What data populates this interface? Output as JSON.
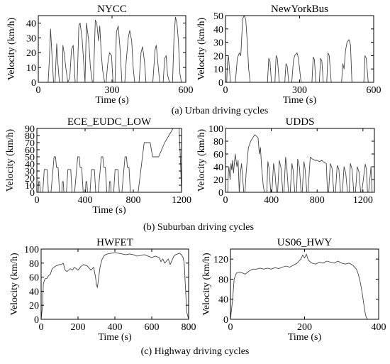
{
  "chart_data": [
    {
      "id": "nycc",
      "type": "line",
      "title": "NYCC",
      "xlabel": "Time (s)",
      "ylabel": "Velocity (km/h)",
      "xlim": [
        0,
        600
      ],
      "ylim": [
        0,
        45
      ],
      "xticks": [
        0,
        300,
        600
      ],
      "yticks": [
        0,
        10,
        20,
        30,
        40
      ],
      "series": [
        {
          "x": [
            0,
            40,
            45,
            50,
            55,
            62,
            68,
            75,
            80,
            86,
            92,
            98,
            100,
            105,
            112,
            120,
            128,
            135,
            142,
            150,
            158,
            165,
            170,
            178,
            183,
            190,
            196,
            205,
            212,
            220,
            224,
            232,
            238,
            245,
            250,
            256,
            262,
            270,
            276,
            282,
            290,
            298,
            304,
            312,
            318,
            325,
            332,
            340,
            346,
            352,
            358,
            366,
            372,
            380,
            386,
            392,
            398,
            404,
            410,
            418,
            424,
            432,
            438,
            446,
            452,
            460,
            466,
            475,
            480,
            488,
            494,
            500,
            508,
            514,
            520,
            526,
            534,
            540,
            546,
            552,
            558,
            564,
            570,
            576,
            582,
            590,
            596,
            600
          ],
          "y": [
            0,
            0,
            15,
            36,
            20,
            0,
            0,
            26,
            12,
            0,
            0,
            0,
            25,
            20,
            10,
            0,
            3,
            22,
            25,
            0,
            0,
            38,
            40,
            30,
            18,
            0,
            40,
            28,
            10,
            0,
            0,
            42,
            40,
            28,
            38,
            20,
            8,
            0,
            0,
            12,
            20,
            18,
            0,
            0,
            34,
            38,
            24,
            0,
            0,
            0,
            15,
            30,
            35,
            28,
            10,
            0,
            0,
            0,
            0,
            20,
            24,
            14,
            0,
            0,
            0,
            0,
            0,
            22,
            25,
            10,
            0,
            0,
            0,
            16,
            18,
            5,
            0,
            0,
            0,
            30,
            44,
            40,
            28,
            6,
            0,
            0,
            0,
            0
          ]
        }
      ]
    },
    {
      "id": "nybus",
      "type": "line",
      "title": "NewYorkBus",
      "xlabel": "Time (s)",
      "ylabel": "Velocity (km/h)",
      "xlim": [
        0,
        600
      ],
      "ylim": [
        0,
        50
      ],
      "xticks": [
        0,
        300,
        600
      ],
      "yticks": [
        0,
        10,
        20,
        30,
        40,
        50
      ],
      "series": [
        {
          "x": [
            0,
            5,
            8,
            12,
            16,
            20,
            24,
            40,
            48,
            56,
            62,
            66,
            70,
            76,
            82,
            88,
            94,
            100,
            170,
            175,
            180,
            186,
            200,
            205,
            210,
            218,
            240,
            245,
            250,
            256,
            268,
            275,
            280,
            290,
            295,
            300,
            306,
            350,
            355,
            360,
            366,
            380,
            385,
            390,
            396,
            410,
            415,
            420,
            428,
            470,
            475,
            480,
            486,
            492,
            500,
            506,
            512,
            560,
            565,
            570,
            578,
            600
          ],
          "y": [
            0,
            0,
            15,
            20,
            10,
            0,
            0,
            0,
            18,
            22,
            20,
            35,
            48,
            50,
            47,
            30,
            10,
            0,
            0,
            18,
            16,
            0,
            0,
            20,
            18,
            0,
            0,
            14,
            12,
            0,
            0,
            16,
            20,
            22,
            18,
            10,
            0,
            0,
            19,
            17,
            0,
            0,
            18,
            16,
            0,
            0,
            22,
            20,
            0,
            0,
            14,
            10,
            24,
            30,
            32,
            28,
            0,
            0,
            20,
            18,
            0,
            0
          ]
        }
      ]
    },
    {
      "id": "ece",
      "type": "line",
      "title": "ECE_EUDC_LOW",
      "xlabel": "Time (s)",
      "ylabel": "Velocity (km/h)",
      "xlim": [
        0,
        1200
      ],
      "ylim": [
        0,
        90
      ],
      "xticks": [
        0,
        400,
        800,
        1200
      ],
      "yticks": [
        0,
        10,
        20,
        30,
        40,
        50,
        60,
        70,
        80,
        90
      ],
      "series": [
        {
          "x": [
            0,
            11,
            15,
            23,
            28,
            49,
            61,
            85,
            96,
            117,
            143,
            155,
            163,
            176,
            188,
            195,
            206,
            207,
            211,
            219,
            224,
            245,
            257,
            281,
            292,
            313,
            339,
            351,
            359,
            372,
            384,
            391,
            402,
            403,
            407,
            415,
            420,
            441,
            453,
            477,
            488,
            509,
            535,
            547,
            555,
            568,
            580,
            587,
            598,
            599,
            603,
            611,
            616,
            637,
            649,
            673,
            684,
            705,
            731,
            743,
            751,
            764,
            776,
            783,
            794,
            800,
            840,
            890,
            940,
            960,
            1010,
            1060,
            1130,
            1170,
            1180,
            1190,
            1200
          ],
          "y": [
            0,
            0,
            15,
            15,
            0,
            0,
            32,
            32,
            0,
            0,
            50,
            50,
            35,
            35,
            0,
            0,
            0,
            0,
            15,
            15,
            0,
            0,
            32,
            32,
            0,
            0,
            50,
            50,
            35,
            35,
            0,
            0,
            0,
            0,
            15,
            15,
            0,
            0,
            32,
            32,
            0,
            0,
            50,
            50,
            35,
            35,
            0,
            0,
            0,
            0,
            15,
            15,
            0,
            0,
            32,
            32,
            0,
            0,
            50,
            50,
            35,
            35,
            0,
            0,
            0,
            0,
            0,
            70,
            70,
            50,
            50,
            70,
            90,
            90,
            90,
            50,
            0
          ]
        }
      ]
    },
    {
      "id": "udds",
      "type": "line",
      "title": "UDDS",
      "xlabel": "",
      "ylabel": "Velocity (km/h)",
      "xlim": [
        0,
        1300
      ],
      "ylim": [
        0,
        100
      ],
      "xticks": [
        0,
        400,
        800,
        1200
      ],
      "yticks": [
        0,
        20,
        40,
        60,
        80,
        100
      ],
      "series": [
        {
          "x": [
            0,
            20,
            25,
            30,
            40,
            48,
            55,
            62,
            70,
            85,
            100,
            110,
            120,
            130,
            140,
            160,
            170,
            180,
            190,
            200,
            220,
            240,
            255,
            270,
            285,
            295,
            305,
            315,
            330,
            340,
            360,
            370,
            380,
            395,
            405,
            420,
            430,
            445,
            455,
            470,
            485,
            500,
            510,
            525,
            535,
            550,
            565,
            580,
            590,
            605,
            620,
            630,
            645,
            660,
            670,
            685,
            695,
            710,
            720,
            740,
            760,
            780,
            800,
            820,
            840,
            860,
            880,
            890,
            900,
            915,
            930,
            945,
            960,
            975,
            990,
            1005,
            1020,
            1035,
            1050,
            1065,
            1080,
            1090,
            1105,
            1120,
            1135,
            1150,
            1165,
            1180,
            1190,
            1210,
            1220,
            1230,
            1240,
            1250,
            1260,
            1270,
            1280,
            1300
          ],
          "y": [
            0,
            0,
            30,
            40,
            20,
            45,
            35,
            50,
            30,
            60,
            40,
            50,
            0,
            30,
            45,
            0,
            0,
            30,
            50,
            70,
            80,
            86,
            90,
            88,
            85,
            60,
            70,
            40,
            10,
            0,
            0,
            48,
            38,
            0,
            0,
            45,
            35,
            0,
            0,
            50,
            38,
            0,
            0,
            55,
            40,
            0,
            0,
            45,
            35,
            0,
            0,
            52,
            40,
            0,
            0,
            48,
            36,
            0,
            0,
            55,
            52,
            50,
            50,
            48,
            50,
            47,
            45,
            0,
            0,
            45,
            38,
            0,
            0,
            42,
            36,
            0,
            0,
            40,
            30,
            0,
            0,
            45,
            36,
            0,
            0,
            40,
            32,
            0,
            0,
            30,
            44,
            36,
            0,
            0,
            20,
            40,
            0,
            0
          ]
        }
      ]
    },
    {
      "id": "hwfet",
      "type": "line",
      "title": "HWFET",
      "xlabel": "Time (s)",
      "ylabel": "Velocity (km/h)",
      "xlim": [
        0,
        800
      ],
      "ylim": [
        0,
        100
      ],
      "xticks": [
        0,
        200,
        400,
        600,
        800
      ],
      "yticks": [
        0,
        20,
        40,
        60,
        80,
        100
      ],
      "series": [
        {
          "x": [
            0,
            8,
            12,
            18,
            24,
            30,
            40,
            50,
            60,
            70,
            80,
            90,
            100,
            110,
            120,
            130,
            140,
            150,
            160,
            170,
            180,
            190,
            200,
            215,
            230,
            250,
            270,
            285,
            295,
            300,
            305,
            310,
            320,
            330,
            340,
            350,
            360,
            380,
            400,
            420,
            440,
            460,
            480,
            500,
            520,
            540,
            560,
            580,
            600,
            620,
            640,
            650,
            660,
            670,
            690,
            700,
            710,
            720,
            730,
            740,
            750,
            760,
            770,
            776,
            782,
            790,
            800
          ],
          "y": [
            0,
            20,
            50,
            56,
            58,
            58,
            62,
            64,
            72,
            74,
            76,
            77,
            78,
            78,
            80,
            70,
            68,
            70,
            72,
            70,
            74,
            72,
            70,
            75,
            78,
            76,
            70,
            74,
            60,
            50,
            45,
            55,
            75,
            85,
            90,
            92,
            93,
            94,
            95,
            94,
            93,
            92,
            93,
            92,
            90,
            91,
            92,
            90,
            88,
            90,
            88,
            82,
            86,
            80,
            86,
            78,
            84,
            90,
            92,
            93,
            94,
            92,
            88,
            80,
            50,
            10,
            0
          ]
        }
      ]
    },
    {
      "id": "us06",
      "type": "line",
      "title": "US06_HWY",
      "xlabel": "Time (s)",
      "ylabel": "Velocity (km/h)",
      "xlim": [
        0,
        400
      ],
      "ylim": [
        0,
        140
      ],
      "xticks": [
        0,
        200,
        400
      ],
      "yticks": [
        0,
        40,
        80,
        120
      ],
      "series": [
        {
          "x": [
            0,
            6,
            10,
            16,
            24,
            30,
            40,
            50,
            60,
            70,
            80,
            90,
            100,
            110,
            120,
            130,
            140,
            150,
            160,
            170,
            180,
            190,
            195,
            200,
            205,
            210,
            220,
            230,
            240,
            250,
            260,
            270,
            280,
            290,
            300,
            310,
            320,
            330,
            340,
            345,
            350,
            355,
            360,
            363,
            366,
            370
          ],
          "y": [
            0,
            40,
            80,
            92,
            94,
            93,
            90,
            96,
            100,
            100,
            102,
            100,
            102,
            100,
            103,
            101,
            104,
            106,
            104,
            108,
            112,
            120,
            128,
            122,
            130,
            118,
            112,
            110,
            114,
            112,
            116,
            114,
            112,
            116,
            112,
            110,
            112,
            108,
            100,
            90,
            75,
            55,
            30,
            15,
            5,
            0
          ]
        }
      ]
    }
  ],
  "captions": {
    "urban": "(a) Urban driving cycles",
    "suburban": "(b) Suburban  driving cycles",
    "highway": "(c)  Highway  driving cycles"
  }
}
